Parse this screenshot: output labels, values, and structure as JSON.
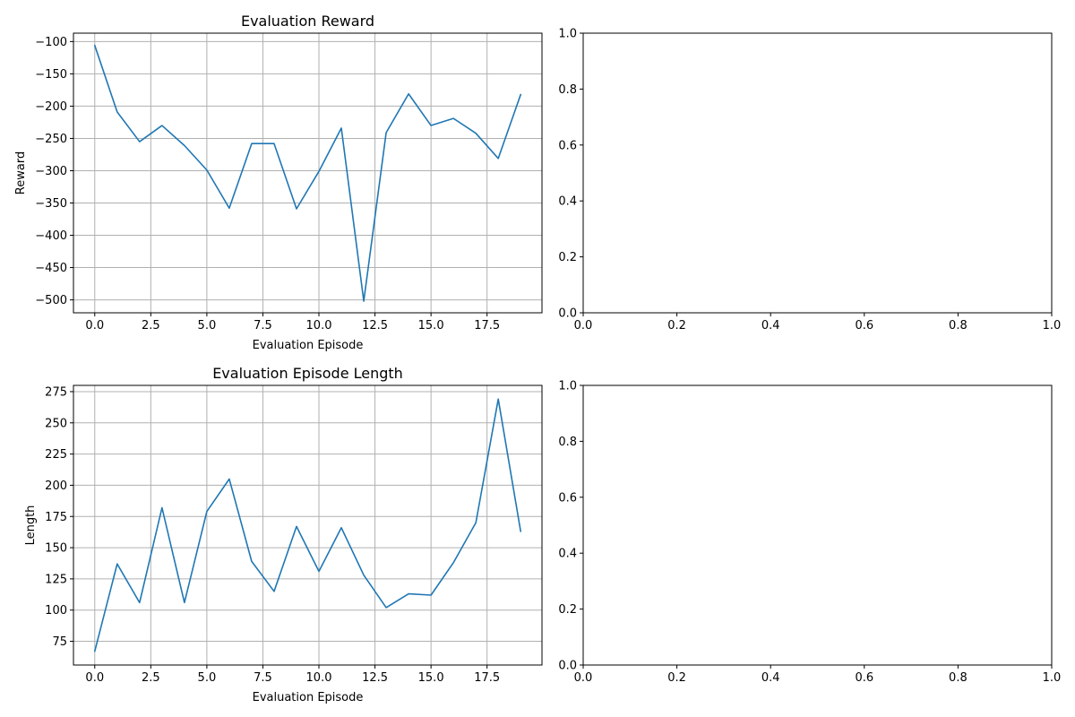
{
  "colors": {
    "series": "#1f77b4",
    "grid": "#b0b0b0",
    "axis": "#000000"
  },
  "chart_data": [
    {
      "type": "line",
      "title": "Evaluation Reward",
      "xlabel": "Evaluation Episode",
      "ylabel": "Reward",
      "grid": true,
      "xlim": [
        -0.95,
        19.95
      ],
      "ylim": [
        -520,
        -87
      ],
      "xticks": [
        0,
        2.5,
        5,
        7.5,
        10,
        12.5,
        15,
        17.5
      ],
      "xtick_labels": [
        "0.0",
        "2.5",
        "5.0",
        "7.5",
        "10.0",
        "12.5",
        "15.0",
        "17.5"
      ],
      "yticks": [
        -100,
        -150,
        -200,
        -250,
        -300,
        -350,
        -400,
        -450,
        -500
      ],
      "ytick_labels": [
        "−100",
        "−150",
        "−200",
        "−250",
        "−300",
        "−350",
        "−400",
        "−450",
        "−500"
      ],
      "x": [
        0,
        1,
        2,
        3,
        4,
        5,
        6,
        7,
        8,
        9,
        10,
        11,
        12,
        13,
        14,
        15,
        16,
        17,
        18,
        19
      ],
      "y": [
        -106,
        -209,
        -255,
        -230,
        -261,
        -299,
        -358,
        -258,
        -258,
        -359,
        -301,
        -234,
        -502,
        -241,
        -181,
        -230,
        -219,
        -242,
        -281,
        -182
      ]
    },
    {
      "type": "empty",
      "xlim": [
        0,
        1
      ],
      "ylim": [
        0,
        1
      ],
      "xticks": [
        0,
        0.2,
        0.4,
        0.6,
        0.8,
        1.0
      ],
      "xtick_labels": [
        "0.0",
        "0.2",
        "0.4",
        "0.6",
        "0.8",
        "1.0"
      ],
      "yticks": [
        0,
        0.2,
        0.4,
        0.6,
        0.8,
        1.0
      ],
      "ytick_labels": [
        "0.0",
        "0.2",
        "0.4",
        "0.6",
        "0.8",
        "1.0"
      ]
    },
    {
      "type": "line",
      "title": "Evaluation Episode Length",
      "xlabel": "Evaluation Episode",
      "ylabel": "Length",
      "grid": true,
      "xlim": [
        -0.95,
        19.95
      ],
      "ylim": [
        56,
        280
      ],
      "xticks": [
        0,
        2.5,
        5,
        7.5,
        10,
        12.5,
        15,
        17.5
      ],
      "xtick_labels": [
        "0.0",
        "2.5",
        "5.0",
        "7.5",
        "10.0",
        "12.5",
        "15.0",
        "17.5"
      ],
      "yticks": [
        75,
        100,
        125,
        150,
        175,
        200,
        225,
        250,
        275
      ],
      "ytick_labels": [
        "75",
        "100",
        "125",
        "150",
        "175",
        "200",
        "225",
        "250",
        "275"
      ],
      "x": [
        0,
        1,
        2,
        3,
        4,
        5,
        6,
        7,
        8,
        9,
        10,
        11,
        12,
        13,
        14,
        15,
        16,
        17,
        18,
        19
      ],
      "y": [
        67,
        137,
        106,
        182,
        106,
        179,
        205,
        139,
        115,
        167,
        131,
        166,
        128,
        102,
        113,
        112,
        138,
        170,
        269,
        163
      ]
    },
    {
      "type": "empty",
      "xlim": [
        0,
        1
      ],
      "ylim": [
        0,
        1
      ],
      "xticks": [
        0,
        0.2,
        0.4,
        0.6,
        0.8,
        1.0
      ],
      "xtick_labels": [
        "0.0",
        "0.2",
        "0.4",
        "0.6",
        "0.8",
        "1.0"
      ],
      "yticks": [
        0,
        0.2,
        0.4,
        0.6,
        0.8,
        1.0
      ],
      "ytick_labels": [
        "0.0",
        "0.2",
        "0.4",
        "0.6",
        "0.8",
        "1.0"
      ]
    }
  ]
}
